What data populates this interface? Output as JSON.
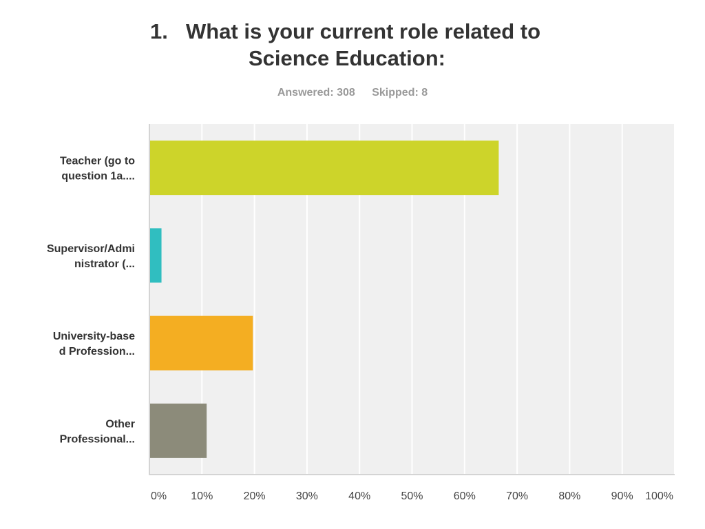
{
  "title": {
    "number": "1.",
    "line1": "What is your current role related to",
    "line2": "Science Education:"
  },
  "meta": {
    "answered": "Answered: 308",
    "skipped": "Skipped: 8"
  },
  "chart_data": {
    "type": "bar",
    "orientation": "horizontal",
    "title": "1. What is your current role related to Science Education:",
    "categories": [
      [
        "Teacher (go to",
        "question 1a...."
      ],
      [
        "Supervisor/Admi",
        "nistrator (..."
      ],
      [
        "University-base",
        "d Profession..."
      ],
      [
        "Other",
        "Professional..."
      ]
    ],
    "values": [
      66.5,
      2.3,
      19.7,
      10.9
    ],
    "colors": [
      "#cdd42a",
      "#30bec0",
      "#f4ae22",
      "#8c8b7a"
    ],
    "xlim": [
      0,
      100
    ],
    "xticks": [
      "0%",
      "10%",
      "20%",
      "30%",
      "40%",
      "50%",
      "60%",
      "70%",
      "80%",
      "90%",
      "100%"
    ],
    "grid": true,
    "background": "#f0f0f0"
  }
}
